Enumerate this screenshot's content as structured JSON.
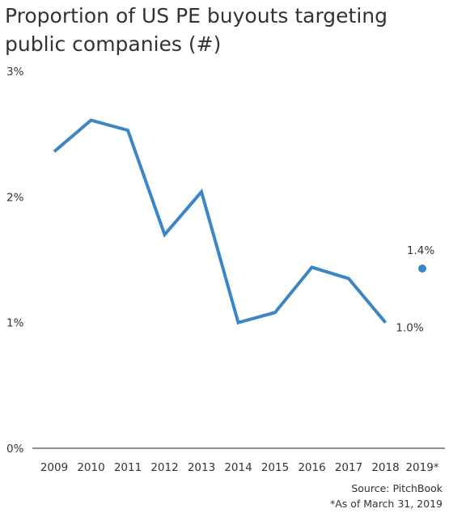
{
  "title_lines": [
    "Proportion of US PE buyouts targeting",
    "public companies (#)"
  ],
  "source": "Source: PitchBook",
  "note": "*As of March 31, 2019",
  "colors": {
    "line": "#3a87c8",
    "axis": "#222222",
    "text": "#333333"
  },
  "chart_data": {
    "type": "line",
    "title": "Proportion of US PE buyouts targeting public companies (#)",
    "xlabel": "",
    "ylabel": "",
    "categories": [
      "2009",
      "2010",
      "2011",
      "2012",
      "2013",
      "2014",
      "2015",
      "2016",
      "2017",
      "2018",
      "2019*"
    ],
    "ylim": [
      0,
      3
    ],
    "yticks": [
      0,
      1,
      2,
      3
    ],
    "ytick_labels": [
      "0%",
      "1%",
      "2%",
      "3%"
    ],
    "grid": false,
    "series": [
      {
        "values": [
          2.36,
          2.61,
          2.53,
          1.7,
          2.04,
          1.0,
          1.08,
          1.44,
          1.35,
          1.0,
          null
        ]
      },
      {
        "values": [
          null,
          null,
          null,
          null,
          null,
          null,
          null,
          null,
          null,
          null,
          1.43
        ],
        "style": "point"
      }
    ],
    "data_labels": [
      {
        "category": "2018",
        "text": "1.0%"
      },
      {
        "category": "2019*",
        "text": "1.4%"
      }
    ]
  }
}
